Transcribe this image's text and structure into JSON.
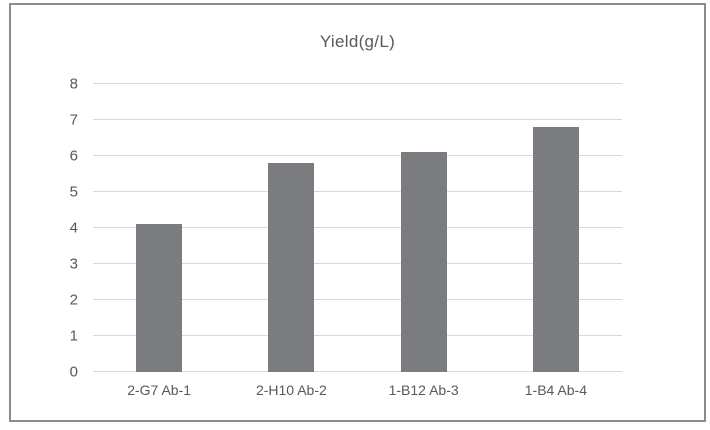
{
  "figure": {
    "background": "#ffffff",
    "border_color": "#8c8c8c"
  },
  "chart_data": {
    "type": "bar",
    "title": "Yield(g/L)",
    "categories": [
      "2-G7 Ab-1",
      "2-H10 Ab-2",
      "1-B12 Ab-3",
      "1-B4 Ab-4"
    ],
    "values": [
      4.1,
      5.8,
      6.1,
      6.8
    ],
    "xlabel": "",
    "ylabel": "",
    "ylim": [
      0,
      8
    ],
    "yticks": [
      0,
      1,
      2,
      3,
      4,
      5,
      6,
      7,
      8
    ],
    "grid": true,
    "legend": false,
    "bar_color": "#7b7c80",
    "gridline_color": "#d9d9d9",
    "axis_text_color": "#595959",
    "title_color": "#595959"
  }
}
